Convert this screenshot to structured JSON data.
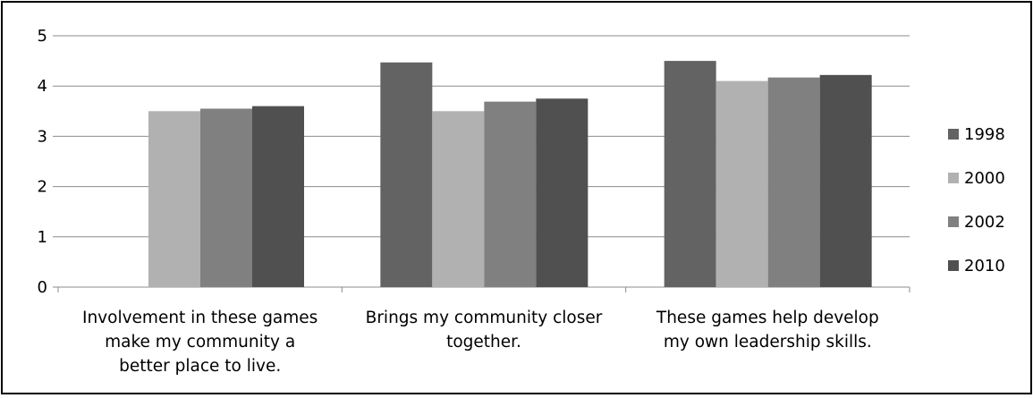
{
  "chart_data": {
    "type": "bar",
    "title": "",
    "xlabel": "",
    "ylabel": "",
    "ylim": [
      0,
      5
    ],
    "yticks": [
      "0",
      "1",
      "2",
      "3",
      "4",
      "5"
    ],
    "grid": true,
    "legend_position": "right",
    "categories": [
      [
        "Involvement in these games",
        "make my community a",
        "better place to live."
      ],
      [
        "Brings my community closer",
        "together."
      ],
      [
        "These games help develop",
        "my own leadership skills."
      ]
    ],
    "series": [
      {
        "name": "1998",
        "color": "#636363",
        "values": [
          null,
          4.47,
          4.5
        ]
      },
      {
        "name": "2000",
        "color": "#b1b1b1",
        "values": [
          3.5,
          3.5,
          4.1
        ]
      },
      {
        "name": "2002",
        "color": "#808080",
        "values": [
          3.55,
          3.69,
          4.17
        ]
      },
      {
        "name": "2010",
        "color": "#505050",
        "values": [
          3.6,
          3.75,
          4.22
        ]
      }
    ]
  }
}
